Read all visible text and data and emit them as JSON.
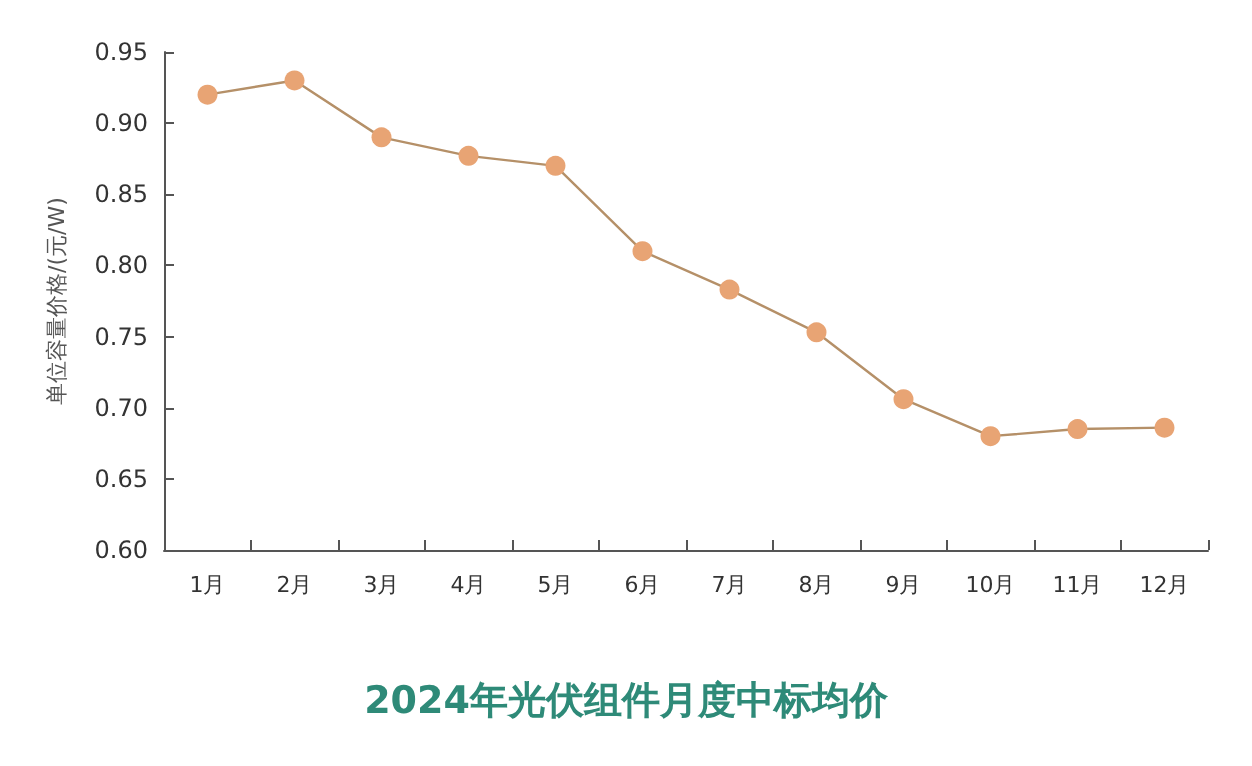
{
  "chart_data": {
    "type": "line",
    "title": "2024年光伏组件月度中标均价",
    "ylabel": "单位容量价格/(元/W)",
    "categories": [
      "1月",
      "2月",
      "3月",
      "4月",
      "5月",
      "6月",
      "7月",
      "8月",
      "9月",
      "10月",
      "11月",
      "12月"
    ],
    "series": [
      {
        "color": "#e8a474",
        "values": [
          0.92,
          0.93,
          0.89,
          0.877,
          0.87,
          0.81,
          0.783,
          0.753,
          0.706,
          0.68,
          0.685,
          0.686
        ]
      }
    ],
    "ylim": [
      0.6,
      0.95
    ],
    "yticks": [
      {
        "value": 0.6,
        "label": "0.60"
      },
      {
        "value": 0.65,
        "label": "0.65"
      },
      {
        "value": 0.7,
        "label": "0.70"
      },
      {
        "value": 0.75,
        "label": "0.75"
      },
      {
        "value": 0.8,
        "label": "0.80"
      },
      {
        "value": 0.85,
        "label": "0.85"
      },
      {
        "value": 0.9,
        "label": "0.90"
      },
      {
        "value": 0.95,
        "label": "0.95"
      }
    ],
    "grid": false,
    "marker": "circle",
    "line_style": "solid"
  }
}
